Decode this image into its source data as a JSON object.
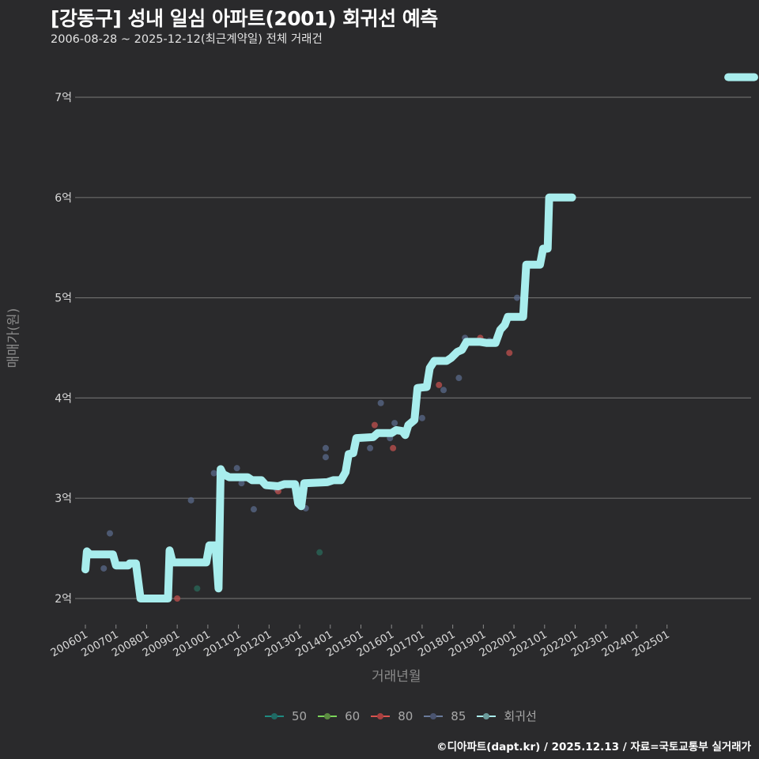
{
  "header": {
    "title": "[강동구] 성내 일심 아파트(2001) 회귀선 예측",
    "subtitle": "2006-08-28 ~ 2025-12-12(최근계약일) 전체 거래건"
  },
  "footer": {
    "credit": "©디아파트(dapt.kr) / 2025.12.13 / 자료=국토교통부 실거래가"
  },
  "colors": {
    "background": "#2a2a2c",
    "grid": "#6a6a6a",
    "s50": "#1f8a80",
    "s60": "#7ad65a",
    "s80": "#d9534f",
    "s85": "#5a6a8a",
    "regression": "#a8eded"
  },
  "chart_data": {
    "type": "line",
    "title": "[강동구] 성내 일심 아파트(2001) 회귀선 예측",
    "subtitle": "2006-08-28 ~ 2025-12-12(최근계약일) 전체 거래건",
    "xlabel": "거래년월",
    "ylabel": "매매가(원)",
    "x_ticks": [
      "200601",
      "200701",
      "200801",
      "200901",
      "201001",
      "201101",
      "201201",
      "201301",
      "201401",
      "201501",
      "201601",
      "201701",
      "201801",
      "201901",
      "202001",
      "202101",
      "202201",
      "202301",
      "202401",
      "202501"
    ],
    "y_ticks": [
      "2억",
      "3억",
      "4억",
      "5억",
      "6억",
      "7억"
    ],
    "y_tick_values": [
      2,
      3,
      4,
      5,
      6,
      7
    ],
    "ylim": [
      1.8,
      7.35
    ],
    "xlim": [
      2005.85,
      2028.8
    ],
    "grid": true,
    "legend": [
      "50",
      "60",
      "80",
      "85",
      "회귀선"
    ],
    "legend_position": "bottom",
    "series": [
      {
        "name": "회귀선",
        "note": "x in decimal years, y in 억원",
        "points": [
          [
            2006.0,
            2.29
          ],
          [
            2006.05,
            2.47
          ],
          [
            2006.15,
            2.44
          ],
          [
            2006.9,
            2.44
          ],
          [
            2007.0,
            2.33
          ],
          [
            2007.4,
            2.33
          ],
          [
            2007.45,
            2.35
          ],
          [
            2007.65,
            2.35
          ],
          [
            2007.8,
            2.0
          ],
          [
            2008.7,
            2.0
          ],
          [
            2008.75,
            2.48
          ],
          [
            2008.85,
            2.36
          ],
          [
            2009.95,
            2.36
          ],
          [
            2010.05,
            2.53
          ],
          [
            2010.25,
            2.53
          ],
          [
            2010.35,
            2.1
          ],
          [
            2010.42,
            3.29
          ],
          [
            2010.5,
            3.24
          ],
          [
            2010.7,
            3.21
          ],
          [
            2011.3,
            3.21
          ],
          [
            2011.45,
            3.18
          ],
          [
            2011.75,
            3.18
          ],
          [
            2011.9,
            3.13
          ],
          [
            2012.3,
            3.12
          ],
          [
            2012.5,
            3.14
          ],
          [
            2012.85,
            3.14
          ],
          [
            2012.95,
            2.95
          ],
          [
            2013.05,
            2.92
          ],
          [
            2013.15,
            3.15
          ],
          [
            2013.9,
            3.16
          ],
          [
            2014.1,
            3.18
          ],
          [
            2014.35,
            3.18
          ],
          [
            2014.5,
            3.26
          ],
          [
            2014.6,
            3.44
          ],
          [
            2014.75,
            3.45
          ],
          [
            2014.85,
            3.6
          ],
          [
            2015.4,
            3.61
          ],
          [
            2015.55,
            3.65
          ],
          [
            2016.0,
            3.65
          ],
          [
            2016.15,
            3.68
          ],
          [
            2016.35,
            3.67
          ],
          [
            2016.45,
            3.63
          ],
          [
            2016.55,
            3.73
          ],
          [
            2016.75,
            3.78
          ],
          [
            2016.85,
            4.1
          ],
          [
            2017.15,
            4.11
          ],
          [
            2017.25,
            4.3
          ],
          [
            2017.4,
            4.37
          ],
          [
            2017.8,
            4.37
          ],
          [
            2017.95,
            4.4
          ],
          [
            2018.15,
            4.46
          ],
          [
            2018.3,
            4.48
          ],
          [
            2018.45,
            4.56
          ],
          [
            2018.9,
            4.56
          ],
          [
            2019.1,
            4.55
          ],
          [
            2019.4,
            4.55
          ],
          [
            2019.55,
            4.68
          ],
          [
            2019.7,
            4.73
          ],
          [
            2019.8,
            4.81
          ],
          [
            2020.3,
            4.81
          ],
          [
            2020.4,
            5.33
          ],
          [
            2020.85,
            5.33
          ],
          [
            2020.95,
            5.49
          ],
          [
            2021.1,
            5.49
          ],
          [
            2021.15,
            6.0
          ],
          [
            2021.9,
            6.0
          ]
        ],
        "extra_segment": [
          [
            2027.0,
            7.2
          ],
          [
            2027.85,
            7.2
          ]
        ]
      },
      {
        "name": "85",
        "points": [
          [
            2006.6,
            2.3
          ],
          [
            2006.8,
            2.65
          ],
          [
            2009.45,
            2.98
          ],
          [
            2010.2,
            3.25
          ],
          [
            2010.95,
            3.3
          ],
          [
            2011.1,
            3.15
          ],
          [
            2011.5,
            2.89
          ],
          [
            2012.25,
            3.09
          ],
          [
            2013.2,
            2.9
          ],
          [
            2013.85,
            3.5
          ],
          [
            2013.85,
            3.41
          ],
          [
            2014.45,
            3.25
          ],
          [
            2015.3,
            3.5
          ],
          [
            2015.65,
            3.95
          ],
          [
            2015.95,
            3.6
          ],
          [
            2016.1,
            3.75
          ],
          [
            2017.7,
            4.08
          ],
          [
            2018.2,
            4.2
          ],
          [
            2018.4,
            4.6
          ],
          [
            2019.2,
            4.57
          ],
          [
            2020.1,
            5.0
          ],
          [
            2017.0,
            3.8
          ]
        ]
      },
      {
        "name": "80",
        "points": [
          [
            2009.0,
            2.0
          ],
          [
            2012.3,
            3.07
          ],
          [
            2015.45,
            3.73
          ],
          [
            2016.05,
            3.5
          ],
          [
            2017.55,
            4.13
          ],
          [
            2018.9,
            4.6
          ],
          [
            2019.85,
            4.45
          ]
        ]
      },
      {
        "name": "50",
        "points": [
          [
            2009.65,
            2.1
          ],
          [
            2013.65,
            2.46
          ]
        ]
      },
      {
        "name": "60",
        "points": []
      }
    ]
  },
  "legend_items": [
    {
      "label": "50",
      "color": "#1f8a80"
    },
    {
      "label": "60",
      "color": "#7ad65a"
    },
    {
      "label": "80",
      "color": "#d9534f"
    },
    {
      "label": "85",
      "color": "#5a6a8a"
    },
    {
      "label": "회귀선",
      "color": "#a8eded"
    }
  ]
}
